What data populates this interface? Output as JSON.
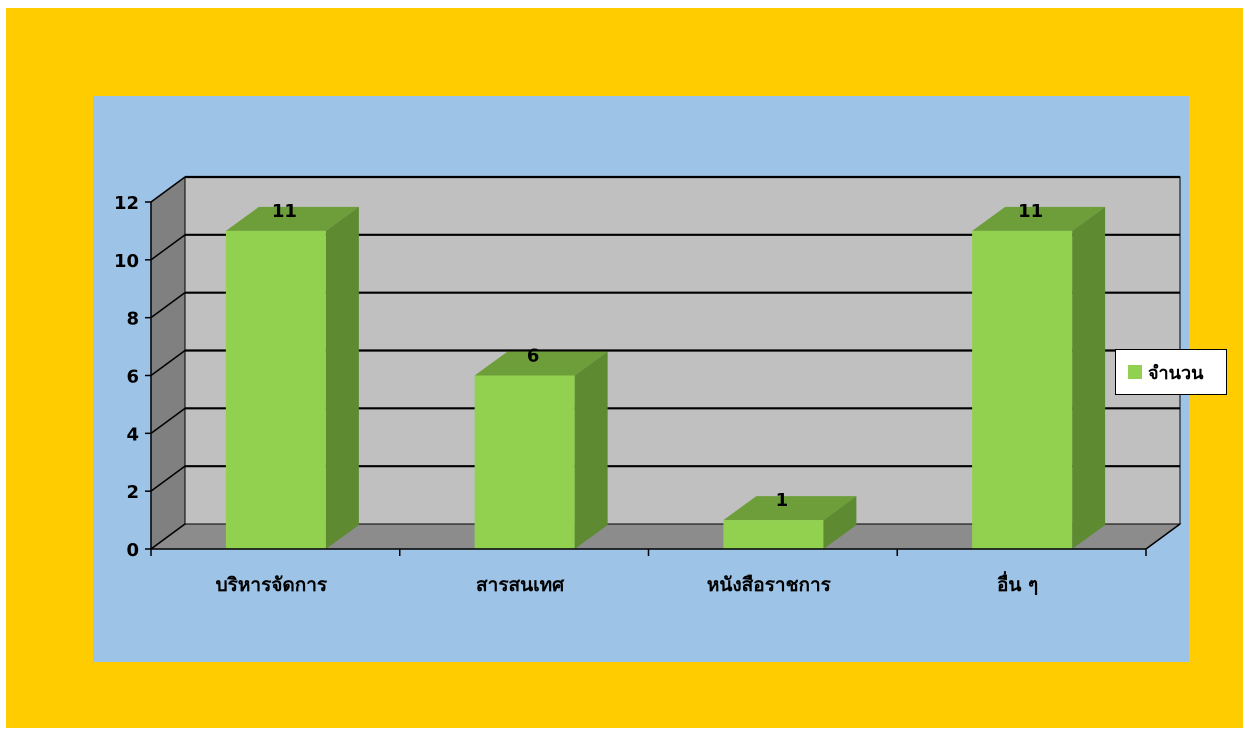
{
  "chart_data": {
    "type": "bar",
    "title": "",
    "xlabel": "",
    "ylabel": "",
    "categories": [
      "บริหารจัดการ",
      "สารสนเทศ",
      "หนังสือราชการ",
      "อื่น ๆ"
    ],
    "series": [
      {
        "name": "จำนวน",
        "values": [
          11,
          6,
          1,
          11
        ],
        "color": "#92d050"
      }
    ],
    "data_labels": [
      "11",
      "6",
      "1",
      "11"
    ],
    "yticks": [
      "0",
      "2",
      "4",
      "6",
      "8",
      "10",
      "12"
    ],
    "ylim": [
      0,
      12
    ],
    "grid": true,
    "legend_position": "right",
    "style": {
      "outer_background": "#ffcc00",
      "panel_background": "#9dc3e6",
      "wall_color": "#c0c0c0",
      "side_wall_color": "#808080",
      "floor_color": "#8c8c8c",
      "bar_front": "#92d050",
      "bar_top": "#6d9e3a",
      "bar_side": "#5e8a32"
    }
  }
}
